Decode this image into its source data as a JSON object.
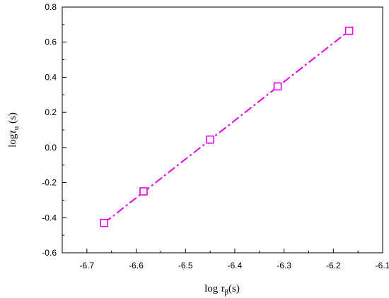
{
  "chart_data": {
    "type": "scatter",
    "xlabel": {
      "base": "log ",
      "greek": "τ",
      "subscript": "β",
      "suffix": "(s)"
    },
    "ylabel": {
      "base": "log",
      "greek": "τ",
      "subscript": "u",
      "suffix": " (s)"
    },
    "xlim": [
      -6.75,
      -6.1
    ],
    "ylim": [
      -0.6,
      0.8
    ],
    "x_ticks": [
      -6.7,
      -6.6,
      -6.5,
      -6.4,
      -6.3,
      -6.2,
      -6.1
    ],
    "x_tick_labels": [
      "-6.7",
      "-6.6",
      "-6.5",
      "-6.4",
      "-6.3",
      "-6.2",
      "-6.1"
    ],
    "y_ticks": [
      -0.6,
      -0.4,
      -0.2,
      0.0,
      0.2,
      0.4,
      0.6,
      0.8
    ],
    "y_tick_labels": [
      "-0.6",
      "-0.4",
      "-0.2",
      "0.0",
      "0.2",
      "0.4",
      "0.6",
      "0.8"
    ],
    "series": [
      {
        "x": [
          -6.665,
          -6.585,
          -6.45,
          -6.313,
          -6.168
        ],
        "y": [
          -0.43,
          -0.25,
          0.045,
          0.348,
          0.665
        ],
        "marker": "square-open",
        "color": "#e600e6"
      }
    ],
    "fit_line": {
      "x": [
        -6.665,
        -6.168
      ],
      "y": [
        -0.43,
        0.665
      ],
      "style": "dash-dot",
      "color": "#e600e6"
    },
    "grid": false,
    "legend": "none"
  }
}
